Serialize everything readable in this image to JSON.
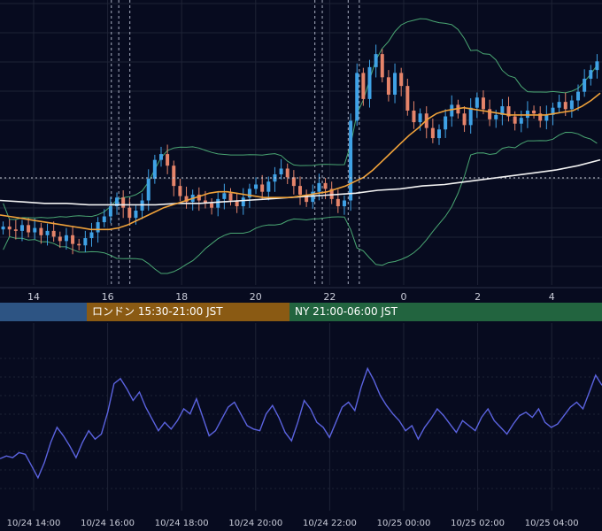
{
  "chart_data": {
    "type": "candlestick",
    "panels": [
      {
        "name": "price",
        "x_tick_labels": [
          "14",
          "16",
          "18",
          "20",
          "22",
          "0",
          "2",
          "4"
        ],
        "indicators": [
          "candles",
          "bollinger-bands",
          "moving-average-orange",
          "moving-average-white"
        ],
        "price_close": [
          14.2,
          14.0,
          13.9,
          14.3,
          13.8,
          14.1,
          13.6,
          13.9,
          13.5,
          13.2,
          13.6,
          13.0,
          12.9,
          13.4,
          13.8,
          14.5,
          14.9,
          15.6,
          16.2,
          15.5,
          14.8,
          15.3,
          16.0,
          17.5,
          18.8,
          19.2,
          18.4,
          17.0,
          16.3,
          15.9,
          16.4,
          16.0,
          15.8,
          15.5,
          16.1,
          16.5,
          16.0,
          15.6,
          16.2,
          16.8,
          17.1,
          16.6,
          17.3,
          17.8,
          18.2,
          17.6,
          17.0,
          16.4,
          15.9,
          16.6,
          17.2,
          16.8,
          16.1,
          15.6,
          16.0,
          21.5,
          24.8,
          23.0,
          25.2,
          26.1,
          24.5,
          23.3,
          24.8,
          23.9,
          22.2,
          21.4,
          22.0,
          21.0,
          20.3,
          20.9,
          21.8,
          22.6,
          22.0,
          21.2,
          22.4,
          23.1,
          22.3,
          21.6,
          21.9,
          22.5,
          21.8,
          21.3,
          21.7,
          22.2,
          22.0,
          21.5,
          21.9,
          22.4,
          22.8,
          22.3,
          22.9,
          23.5,
          24.4,
          25.0,
          25.6
        ],
        "ma_orange": [
          15.0,
          14.9,
          14.8,
          14.7,
          14.6,
          14.5,
          14.4,
          14.3,
          14.2,
          14.1,
          14.0,
          14.0,
          14.0,
          14.1,
          14.3,
          14.6,
          14.9,
          15.2,
          15.5,
          15.7,
          15.9,
          16.1,
          16.3,
          16.5,
          16.6,
          16.6,
          16.5,
          16.4,
          16.3,
          16.2,
          16.2,
          16.2,
          16.2,
          16.3,
          16.4,
          16.5,
          16.6,
          16.8,
          17.0,
          17.3,
          17.6,
          18.1,
          18.7,
          19.3,
          19.9,
          20.5,
          21.0,
          21.6,
          22.0,
          22.2,
          22.3,
          22.4,
          22.3,
          22.2,
          22.1,
          22.0,
          21.9,
          21.9,
          21.9,
          21.9,
          21.9,
          22.0,
          22.1,
          22.2,
          22.5,
          22.9,
          23.4
        ],
        "ma_white": [
          16.0,
          15.9,
          15.8,
          15.8,
          15.7,
          15.7,
          15.7,
          15.7,
          15.8,
          15.8,
          15.9,
          16.0,
          16.1,
          16.2,
          16.3,
          16.4,
          16.5,
          16.7,
          16.8,
          17.0,
          17.1,
          17.3,
          17.5,
          17.7,
          17.9,
          18.1,
          18.4,
          18.8
        ],
        "price_levels": [
          12,
          28
        ],
        "vertical_markers": [
          16.1,
          16.3,
          16.6,
          21.6,
          21.8,
          22.5,
          22.8
        ]
      },
      {
        "name": "oscillator",
        "line_color": "#5b63e0",
        "values": [
          40.2,
          41.0,
          40.5,
          42.0,
          41.5,
          38.0,
          34.5,
          39.0,
          45.0,
          49.5,
          47.0,
          44.0,
          40.5,
          45.0,
          48.5,
          46.0,
          47.5,
          54.0,
          62.5,
          64.0,
          61.0,
          57.5,
          60.0,
          55.5,
          52.0,
          48.5,
          51.0,
          49.0,
          51.5,
          55.0,
          53.5,
          58.0,
          52.5,
          47.0,
          48.5,
          52.0,
          55.5,
          57.0,
          53.5,
          50.0,
          49.0,
          48.5,
          53.5,
          56.0,
          52.5,
          48.0,
          45.5,
          51.0,
          57.5,
          55.0,
          51.0,
          49.5,
          46.5,
          51.0,
          55.5,
          57.0,
          54.5,
          61.5,
          67.0,
          63.5,
          59.0,
          56.0,
          53.5,
          51.5,
          48.5,
          50.0,
          46.0,
          49.5,
          52.0,
          55.0,
          53.0,
          50.5,
          48.0,
          51.5,
          50.0,
          48.5,
          52.5,
          55.0,
          51.5,
          49.5,
          47.5,
          50.5,
          53.0,
          54.0,
          52.5,
          55.0,
          51.0,
          49.5,
          50.5,
          53.0,
          55.5,
          57.0,
          55.0,
          60.0,
          65.0,
          62.0
        ],
        "y_gridlines": 8
      }
    ],
    "sessions": [
      {
        "label": "",
        "color": "#2d5483"
      },
      {
        "label": "ロンドン 15:30-21:00 JST",
        "color": "#8a5a13"
      },
      {
        "label": "NY 21:00-06:00 JST",
        "color": "#22643f"
      }
    ],
    "bottom_x_tick_labels": [
      "10/24 14:00",
      "10/24 16:00",
      "10/24 18:00",
      "10/24 20:00",
      "10/24 22:00",
      "10/25 00:00",
      "10/25 02:00",
      "10/25 04:00"
    ],
    "colors": {
      "background": "#070b1f",
      "grid": "#1e2336",
      "candle_up": "#3fa2e6",
      "candle_down": "#e5846a",
      "bollinger": "#4aa773",
      "ma_orange": "#f0a23a",
      "ma_white": "#f2f2f2"
    }
  }
}
